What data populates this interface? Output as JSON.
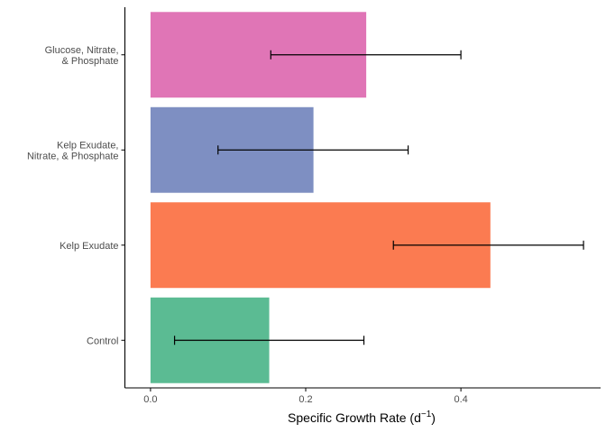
{
  "chart_data": {
    "type": "bar",
    "orientation": "horizontal",
    "title": "",
    "xlabel": "Specific Growth Rate (d",
    "xlabel_sup": "−1",
    "xlabel_suffix": ")",
    "ylabel": "",
    "xlim": [
      -0.033,
      0.58
    ],
    "x_ticks": [
      0.0,
      0.2,
      0.4
    ],
    "x_tick_labels": [
      "0.0",
      "0.2",
      "0.4"
    ],
    "grid": false,
    "legend": "none",
    "categories": [
      [
        "Control"
      ],
      [
        "Kelp Exudate"
      ],
      [
        "Kelp Exudate,",
        "Nitrate, & Phosphate"
      ],
      [
        "Glucose, Nitrate,",
        "& Phosphate"
      ]
    ],
    "values": [
      0.153,
      0.438,
      0.21,
      0.278
    ],
    "error_low": [
      0.031,
      0.313,
      0.087,
      0.155
    ],
    "error_high": [
      0.275,
      0.558,
      0.332,
      0.4
    ],
    "colors": [
      "#5bbb93",
      "#fb7b51",
      "#7e8fc2",
      "#e075b6"
    ]
  }
}
